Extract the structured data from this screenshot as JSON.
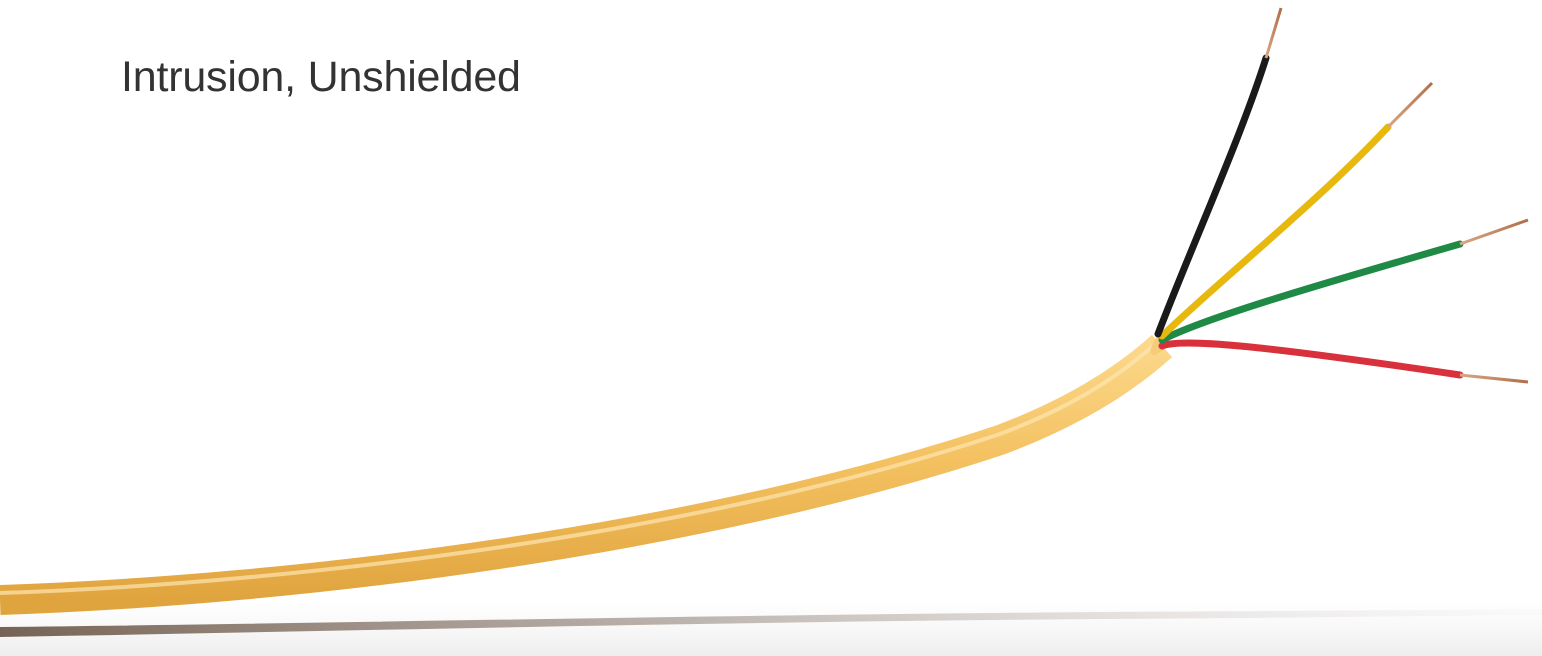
{
  "title": "Intrusion, Unshielded",
  "product_image": {
    "icon": "cable-photo-icon",
    "jacket_color": "#f3c260",
    "conductor_colors": [
      "#1a1a1a",
      "#e7b90f",
      "#1f8a45",
      "#d8313c"
    ],
    "copper_color": "#c58a63"
  }
}
